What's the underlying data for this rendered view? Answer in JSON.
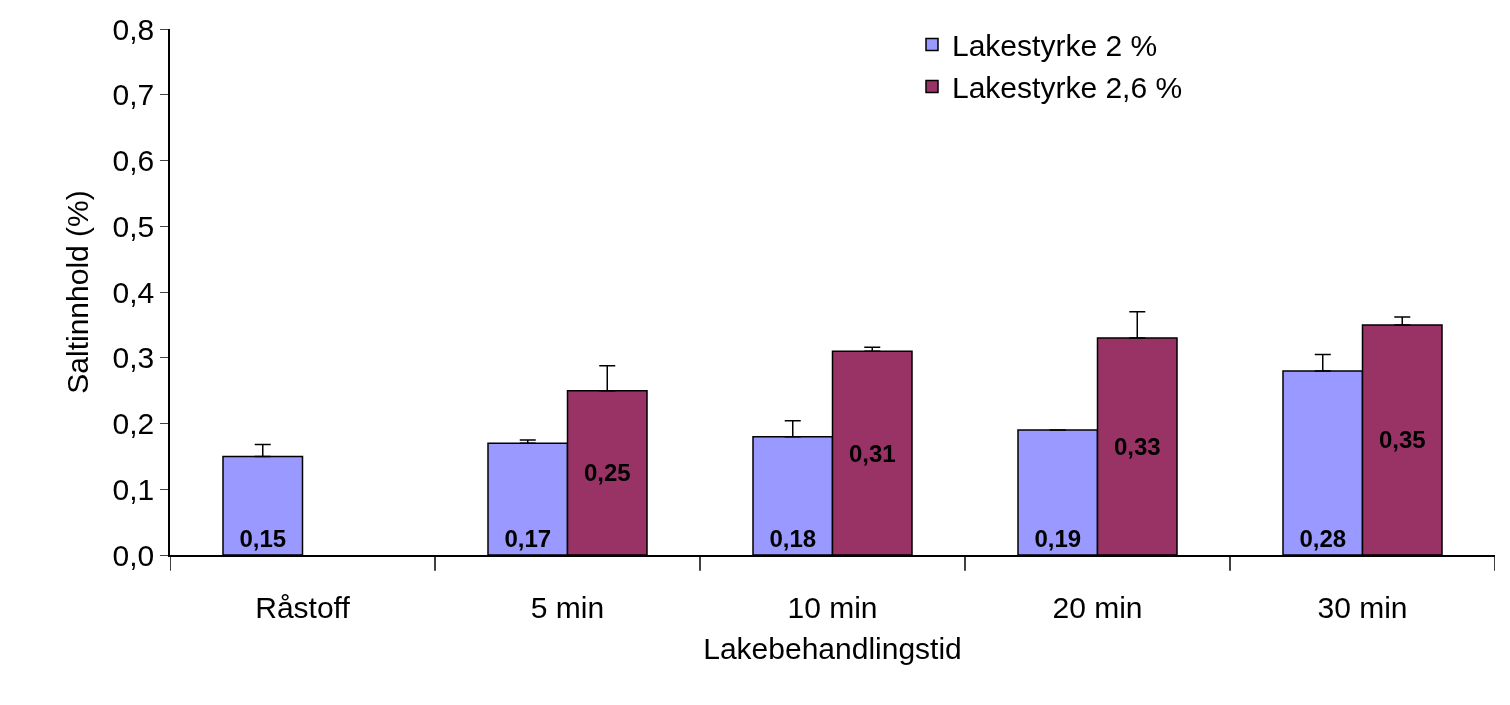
{
  "chart_data": {
    "type": "bar",
    "xlabel": "Lakebehandlingstid",
    "ylabel": "Saltinnhold (%)",
    "categories": [
      "Råstoff",
      "5 min",
      "10 min",
      "20 min",
      "30 min"
    ],
    "series": [
      {
        "name": "Lakestyrke 2 %",
        "color": "#9999ff",
        "values": [
          0.15,
          0.17,
          0.18,
          0.19,
          0.28
        ],
        "value_labels": [
          "0,15",
          "0,17",
          "0,18",
          "0,19",
          "0,28"
        ],
        "errors": [
          [
            0.15,
            0.168
          ],
          [
            0.17,
            0.175
          ],
          [
            0.18,
            0.204
          ],
          [
            0.19,
            0.19
          ],
          [
            0.28,
            0.305
          ]
        ]
      },
      {
        "name": "Lakestyrke 2,6 %",
        "color": "#993366",
        "values": [
          null,
          0.25,
          0.31,
          0.33,
          0.35
        ],
        "value_labels": [
          null,
          "0,25",
          "0,31",
          "0,33",
          "0,35"
        ],
        "errors": [
          null,
          [
            0.25,
            0.288
          ],
          [
            0.31,
            0.316
          ],
          [
            0.33,
            0.37
          ],
          [
            0.35,
            0.362
          ]
        ]
      }
    ],
    "ylim": [
      0,
      0.8
    ],
    "yticks": [
      {
        "value": 0,
        "label": "0,0"
      },
      {
        "value": 0.1,
        "label": "0,1"
      },
      {
        "value": 0.2,
        "label": "0,2"
      },
      {
        "value": 0.3,
        "label": "0,3"
      },
      {
        "value": 0.4,
        "label": "0,4"
      },
      {
        "value": 0.5,
        "label": "0,5"
      },
      {
        "value": 0.6,
        "label": "0,6"
      },
      {
        "value": 0.7,
        "label": "0,7"
      },
      {
        "value": 0.8,
        "label": "0,8"
      }
    ],
    "legend": "top right"
  }
}
